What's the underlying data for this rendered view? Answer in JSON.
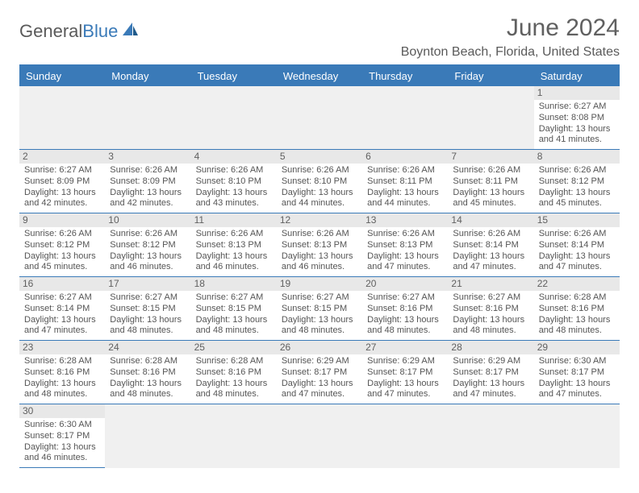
{
  "logo": {
    "part1": "General",
    "part2": "Blue"
  },
  "title": "June 2024",
  "location": "Boynton Beach, Florida, United States",
  "colors": {
    "header_bg": "#3a7ab8",
    "header_text": "#ffffff",
    "daynum_bg": "#e8e8e8",
    "text": "#555555",
    "title_text": "#606060",
    "border": "#3a7ab8"
  },
  "typography": {
    "title_fontsize": 30,
    "location_fontsize": 16,
    "header_fontsize": 13,
    "cell_fontsize": 11
  },
  "weekdays": [
    "Sunday",
    "Monday",
    "Tuesday",
    "Wednesday",
    "Thursday",
    "Friday",
    "Saturday"
  ],
  "first_weekday_index": 6,
  "days": [
    {
      "n": 1,
      "sunrise": "6:27 AM",
      "sunset": "8:08 PM",
      "daylight": "13 hours and 41 minutes."
    },
    {
      "n": 2,
      "sunrise": "6:27 AM",
      "sunset": "8:09 PM",
      "daylight": "13 hours and 42 minutes."
    },
    {
      "n": 3,
      "sunrise": "6:26 AM",
      "sunset": "8:09 PM",
      "daylight": "13 hours and 42 minutes."
    },
    {
      "n": 4,
      "sunrise": "6:26 AM",
      "sunset": "8:10 PM",
      "daylight": "13 hours and 43 minutes."
    },
    {
      "n": 5,
      "sunrise": "6:26 AM",
      "sunset": "8:10 PM",
      "daylight": "13 hours and 44 minutes."
    },
    {
      "n": 6,
      "sunrise": "6:26 AM",
      "sunset": "8:11 PM",
      "daylight": "13 hours and 44 minutes."
    },
    {
      "n": 7,
      "sunrise": "6:26 AM",
      "sunset": "8:11 PM",
      "daylight": "13 hours and 45 minutes."
    },
    {
      "n": 8,
      "sunrise": "6:26 AM",
      "sunset": "8:12 PM",
      "daylight": "13 hours and 45 minutes."
    },
    {
      "n": 9,
      "sunrise": "6:26 AM",
      "sunset": "8:12 PM",
      "daylight": "13 hours and 45 minutes."
    },
    {
      "n": 10,
      "sunrise": "6:26 AM",
      "sunset": "8:12 PM",
      "daylight": "13 hours and 46 minutes."
    },
    {
      "n": 11,
      "sunrise": "6:26 AM",
      "sunset": "8:13 PM",
      "daylight": "13 hours and 46 minutes."
    },
    {
      "n": 12,
      "sunrise": "6:26 AM",
      "sunset": "8:13 PM",
      "daylight": "13 hours and 46 minutes."
    },
    {
      "n": 13,
      "sunrise": "6:26 AM",
      "sunset": "8:13 PM",
      "daylight": "13 hours and 47 minutes."
    },
    {
      "n": 14,
      "sunrise": "6:26 AM",
      "sunset": "8:14 PM",
      "daylight": "13 hours and 47 minutes."
    },
    {
      "n": 15,
      "sunrise": "6:26 AM",
      "sunset": "8:14 PM",
      "daylight": "13 hours and 47 minutes."
    },
    {
      "n": 16,
      "sunrise": "6:27 AM",
      "sunset": "8:14 PM",
      "daylight": "13 hours and 47 minutes."
    },
    {
      "n": 17,
      "sunrise": "6:27 AM",
      "sunset": "8:15 PM",
      "daylight": "13 hours and 48 minutes."
    },
    {
      "n": 18,
      "sunrise": "6:27 AM",
      "sunset": "8:15 PM",
      "daylight": "13 hours and 48 minutes."
    },
    {
      "n": 19,
      "sunrise": "6:27 AM",
      "sunset": "8:15 PM",
      "daylight": "13 hours and 48 minutes."
    },
    {
      "n": 20,
      "sunrise": "6:27 AM",
      "sunset": "8:16 PM",
      "daylight": "13 hours and 48 minutes."
    },
    {
      "n": 21,
      "sunrise": "6:27 AM",
      "sunset": "8:16 PM",
      "daylight": "13 hours and 48 minutes."
    },
    {
      "n": 22,
      "sunrise": "6:28 AM",
      "sunset": "8:16 PM",
      "daylight": "13 hours and 48 minutes."
    },
    {
      "n": 23,
      "sunrise": "6:28 AM",
      "sunset": "8:16 PM",
      "daylight": "13 hours and 48 minutes."
    },
    {
      "n": 24,
      "sunrise": "6:28 AM",
      "sunset": "8:16 PM",
      "daylight": "13 hours and 48 minutes."
    },
    {
      "n": 25,
      "sunrise": "6:28 AM",
      "sunset": "8:16 PM",
      "daylight": "13 hours and 48 minutes."
    },
    {
      "n": 26,
      "sunrise": "6:29 AM",
      "sunset": "8:17 PM",
      "daylight": "13 hours and 47 minutes."
    },
    {
      "n": 27,
      "sunrise": "6:29 AM",
      "sunset": "8:17 PM",
      "daylight": "13 hours and 47 minutes."
    },
    {
      "n": 28,
      "sunrise": "6:29 AM",
      "sunset": "8:17 PM",
      "daylight": "13 hours and 47 minutes."
    },
    {
      "n": 29,
      "sunrise": "6:30 AM",
      "sunset": "8:17 PM",
      "daylight": "13 hours and 47 minutes."
    },
    {
      "n": 30,
      "sunrise": "6:30 AM",
      "sunset": "8:17 PM",
      "daylight": "13 hours and 46 minutes."
    }
  ],
  "labels": {
    "sunrise": "Sunrise:",
    "sunset": "Sunset:",
    "daylight": "Daylight:"
  }
}
